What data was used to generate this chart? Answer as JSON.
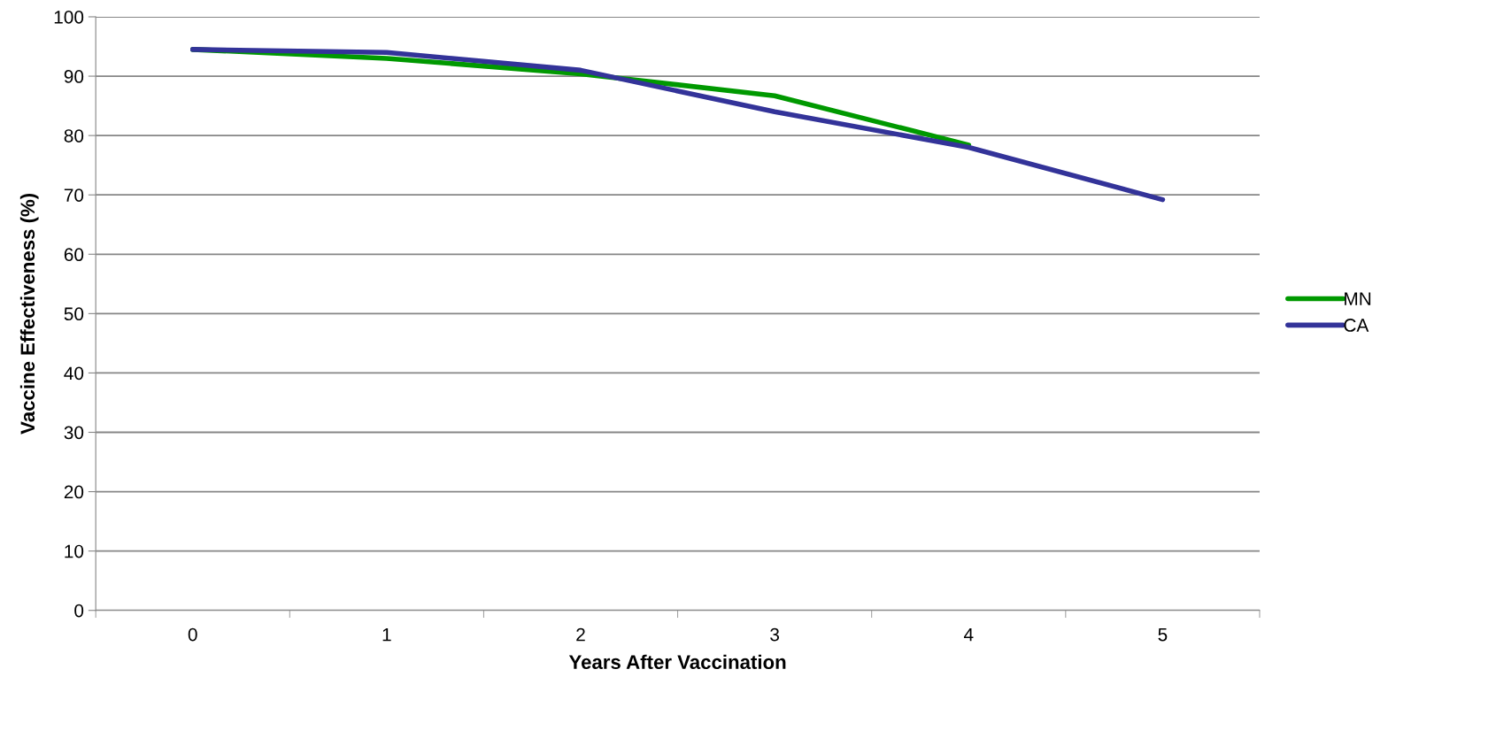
{
  "chart_data": {
    "type": "line",
    "xlabel": "Years After Vaccination",
    "ylabel": "Vaccine Effectiveness (%)",
    "categories": [
      "0",
      "1",
      "2",
      "3",
      "4",
      "5"
    ],
    "series": [
      {
        "name": "MN",
        "color": "#009900",
        "values": [
          94.5,
          93.0,
          90.4,
          86.7,
          78.4,
          null
        ]
      },
      {
        "name": "CA",
        "color": "#333399",
        "values": [
          94.5,
          94.0,
          91.0,
          84.0,
          78.0,
          69.2
        ]
      }
    ],
    "ylim": [
      0,
      100
    ],
    "yticks": [
      0,
      10,
      20,
      30,
      40,
      50,
      60,
      70,
      80,
      90,
      100
    ],
    "grid": "y",
    "legend": "right",
    "marker": "none",
    "line_style": "solid"
  }
}
